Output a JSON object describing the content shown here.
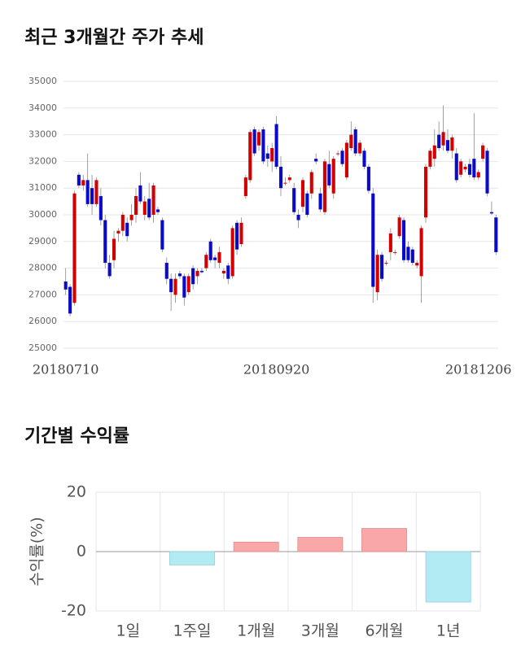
{
  "chart_data": [
    {
      "type": "candlestick",
      "title": "최근 3개월간 주가 추세",
      "categories": [
        "20180710",
        null,
        null,
        null,
        null,
        null,
        null,
        null,
        null,
        null,
        null,
        null,
        null,
        null,
        null,
        null,
        null,
        null,
        null,
        null,
        null,
        null,
        null,
        null,
        null,
        null,
        null,
        null,
        null,
        null,
        null,
        null,
        null,
        null,
        null,
        null,
        null,
        null,
        null,
        null,
        null,
        null,
        null,
        null,
        null,
        null,
        null,
        null,
        "20180920",
        null,
        null,
        null,
        null,
        null,
        null,
        null,
        null,
        null,
        null,
        null,
        null,
        null,
        null,
        null,
        null,
        null,
        null,
        null,
        null,
        null,
        null,
        null,
        null,
        null,
        null,
        null,
        null,
        null,
        null,
        null,
        null,
        null,
        null,
        null,
        null,
        null,
        null,
        null,
        null,
        null,
        null,
        null,
        null,
        null,
        "20181206",
        null,
        null,
        null,
        null
      ],
      "open": [
        27500,
        27300,
        26700,
        31500,
        31100,
        31300,
        31000,
        30400,
        30700,
        29800,
        28200,
        28300,
        29300,
        29400,
        29700,
        29800,
        30000,
        31100,
        30000,
        30600,
        30000,
        30200,
        29800,
        28200,
        27600,
        27000,
        27800,
        27700,
        27100,
        28000,
        27700,
        27900,
        28000,
        29000,
        28400,
        28200,
        27800,
        28100,
        27700,
        29700,
        28900,
        30700,
        31300,
        33200,
        32600,
        33200,
        32300,
        32000,
        33400,
        31800,
        31200,
        31300,
        31000,
        30000,
        30300,
        30800,
        30800,
        32100,
        30800,
        30100,
        31900,
        30800,
        32300,
        32400,
        31400,
        32500,
        33200,
        32300,
        32400,
        31800,
        30800,
        27100,
        28500,
        28200,
        28600,
        28600,
        29200,
        29800,
        28800,
        28700,
        28100,
        27700,
        29900,
        31800,
        32100,
        33000,
        32600,
        32800,
        32400,
        32300,
        31500,
        31700,
        31900,
        32100,
        31400,
        32100,
        32400,
        30100,
        29900
      ],
      "high": [
        28000,
        27400,
        30900,
        31600,
        31500,
        32300,
        31500,
        31400,
        31000,
        30000,
        28500,
        29400,
        29500,
        30100,
        29900,
        30400,
        31000,
        31600,
        30700,
        31200,
        31200,
        30300,
        29900,
        28400,
        27800,
        27800,
        27900,
        27800,
        27800,
        28100,
        28000,
        28000,
        28600,
        29100,
        28500,
        28800,
        28000,
        28200,
        29600,
        29800,
        29900,
        31500,
        33200,
        33300,
        33200,
        33300,
        32600,
        32700,
        33700,
        32200,
        31400,
        31500,
        31200,
        30200,
        31400,
        30900,
        31700,
        32300,
        31000,
        32100,
        32400,
        32200,
        32400,
        32500,
        32800,
        33500,
        33300,
        32800,
        32500,
        31900,
        31000,
        28700,
        28600,
        28300,
        29500,
        28700,
        30000,
        29900,
        29000,
        28800,
        28300,
        29600,
        31900,
        32500,
        33200,
        33500,
        34100,
        33200,
        33000,
        32500,
        32100,
        31900,
        32100,
        33800,
        31700,
        32700,
        32500,
        30500,
        30000
      ],
      "low": [
        27000,
        26200,
        26600,
        31000,
        30900,
        30300,
        30000,
        30300,
        29600,
        28000,
        27600,
        28000,
        29000,
        29200,
        29000,
        29600,
        29700,
        30400,
        29800,
        29800,
        29700,
        30000,
        28600,
        27400,
        26400,
        26700,
        27600,
        26600,
        27000,
        27200,
        27400,
        27800,
        27900,
        28200,
        28000,
        28000,
        27600,
        27400,
        27600,
        28500,
        28800,
        30600,
        31200,
        32200,
        32400,
        31900,
        31800,
        31600,
        31700,
        30700,
        31100,
        31200,
        30000,
        29500,
        30100,
        29900,
        30600,
        31900,
        30100,
        30000,
        31000,
        30600,
        32200,
        31800,
        31300,
        32400,
        32200,
        32200,
        31700,
        30800,
        26700,
        26800,
        27500,
        28100,
        28300,
        28500,
        29100,
        28200,
        28200,
        28100,
        28000,
        26700,
        29700,
        31700,
        31800,
        32400,
        32400,
        32300,
        32100,
        31200,
        31400,
        31600,
        31400,
        31300,
        31300,
        32000,
        30700,
        30000,
        28500
      ],
      "close": [
        27200,
        26300,
        30800,
        31100,
        31300,
        30400,
        30400,
        31300,
        29800,
        28200,
        27700,
        29100,
        29400,
        30000,
        29200,
        30000,
        30700,
        30500,
        30500,
        29900,
        31100,
        30100,
        28700,
        27600,
        27100,
        27600,
        27700,
        26900,
        27700,
        27400,
        27900,
        27850,
        28500,
        28300,
        28300,
        28600,
        27900,
        27600,
        29500,
        28700,
        29700,
        31400,
        33100,
        32300,
        33100,
        32000,
        32100,
        32500,
        31800,
        31000,
        31200,
        31400,
        30100,
        29800,
        31300,
        30000,
        31600,
        32000,
        30200,
        32000,
        31100,
        32100,
        32300,
        31900,
        32700,
        33000,
        32300,
        32700,
        31800,
        30900,
        27300,
        28500,
        27600,
        28200,
        29300,
        28600,
        29900,
        28300,
        28300,
        28200,
        28200,
        29500,
        31800,
        32400,
        32600,
        32500,
        33100,
        32400,
        32900,
        31300,
        32000,
        31800,
        31500,
        31400,
        31600,
        32600,
        30800,
        30050,
        28600
      ],
      "up_color": "#d40000",
      "down_color": "#0a0acc",
      "ylim": [
        25000,
        35000
      ],
      "yticks": [
        25000,
        26000,
        27000,
        28000,
        29000,
        30000,
        31000,
        32000,
        33000,
        34000,
        35000
      ],
      "grid": true
    },
    {
      "type": "bar",
      "title": "기간별 수익률",
      "ylabel": "수익률(%)",
      "categories": [
        "1일",
        "1주일",
        "1개월",
        "3개월",
        "6개월",
        "1년"
      ],
      "values": [
        0,
        -4.5,
        3.2,
        4.8,
        7.8,
        -17
      ],
      "positive_color": "#f9a7a7",
      "negative_color": "#b3ebf4",
      "ylim": [
        -20,
        20
      ],
      "yticks": [
        -20,
        0,
        20
      ],
      "grid": true
    }
  ]
}
